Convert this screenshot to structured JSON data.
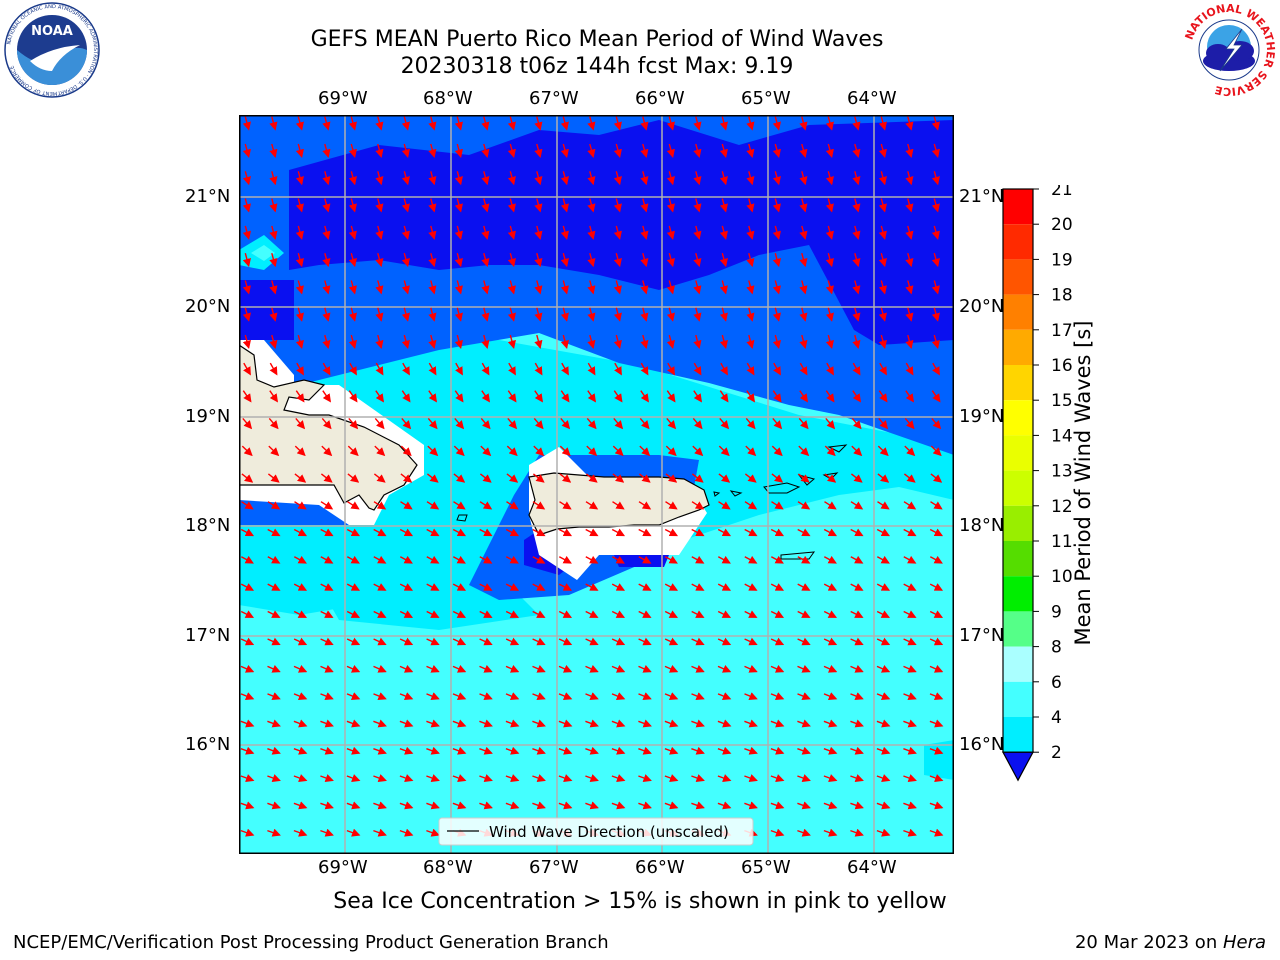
{
  "header": {
    "title_line1": "GEFS MEAN Puerto Rico Mean Period of Wind Waves",
    "title_line2": "20230318 t06z 144h fcst   Max: 9.19"
  },
  "logos": {
    "noaa_text": "NOAA",
    "noaa_ring": "NATIONAL OCEANIC AND ATMOSPHERIC ADMINISTRATION · U.S. DEPARTMENT OF COMMERCE",
    "nws_ring": "NATIONAL WEATHER SERVICE"
  },
  "map": {
    "lon_labels": [
      "69°W",
      "68°W",
      "67°W",
      "66°W",
      "65°W",
      "64°W"
    ],
    "lat_labels": [
      "21°N",
      "20°N",
      "19°N",
      "18°N",
      "17°N",
      "16°N"
    ],
    "legend_label": "Wind Wave Direction (unscaled)",
    "colors": {
      "level_2_4": "#0062ff",
      "level_below_2": "#0a10f0",
      "level_4_6": "#00eeff",
      "level_6_8": "#44ffff",
      "land": "#efecdc",
      "arrow": "#ff0000",
      "grid": "#b0b0b0"
    }
  },
  "colorbar": {
    "label": "Mean Period of Wind Waves [s]",
    "ticks": [
      "21",
      "20",
      "19",
      "18",
      "17",
      "16",
      "15",
      "14",
      "13",
      "12",
      "11",
      "10",
      "9",
      "8",
      "6",
      "4",
      "2"
    ],
    "colors": [
      "#ff0000",
      "#ff2a00",
      "#ff5500",
      "#ff8000",
      "#ffaa00",
      "#ffd500",
      "#ffff00",
      "#eaff00",
      "#ccff00",
      "#99ee00",
      "#55dd00",
      "#00ee00",
      "#55ff88",
      "#aaffff",
      "#44ffff",
      "#00eeff",
      "#0062ff",
      "#0a10f0"
    ]
  },
  "footer": {
    "caption": "Sea Ice Concentration > 15% is shown in pink to yellow",
    "left": "NCEP/EMC/Verification Post Processing Product Generation Branch",
    "right_date": "20 Mar 2023 on ",
    "right_host": "Hera"
  }
}
